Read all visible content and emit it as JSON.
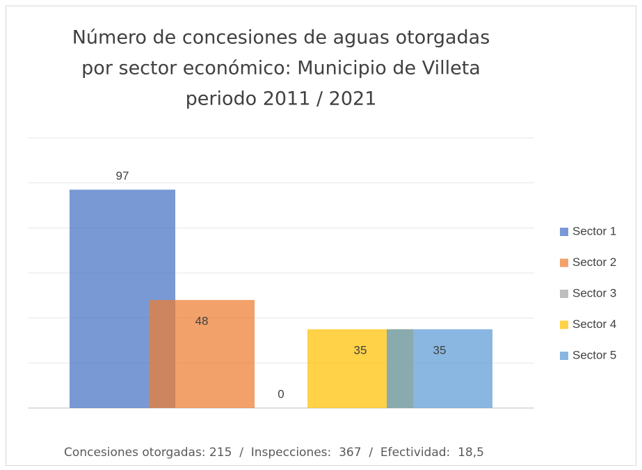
{
  "chart_data": {
    "type": "bar",
    "title": [
      "Número de concesiones de aguas otorgadas",
      "por sector económico: Municipio de Villeta",
      "periodo 2011 / 2021"
    ],
    "categories": [
      "Concesiones otorgadas: 215  /  Inspecciones:  367  /  Efectividad:  18,5"
    ],
    "series": [
      {
        "name": "Sector 1",
        "color": "#4472c4",
        "values": [
          97
        ]
      },
      {
        "name": "Sector 2",
        "color": "#ed7d31",
        "values": [
          48
        ]
      },
      {
        "name": "Sector 3",
        "color": "#a5a5a5",
        "values": [
          0
        ]
      },
      {
        "name": "Sector 4",
        "color": "#ffc000",
        "values": [
          35
        ]
      },
      {
        "name": "Sector 5",
        "color": "#5b9bd5",
        "values": [
          35
        ]
      }
    ],
    "ylim": [
      0,
      120
    ],
    "yticks": [
      0,
      20,
      40,
      60,
      80,
      100,
      120
    ],
    "grid": true,
    "legend": "right"
  }
}
